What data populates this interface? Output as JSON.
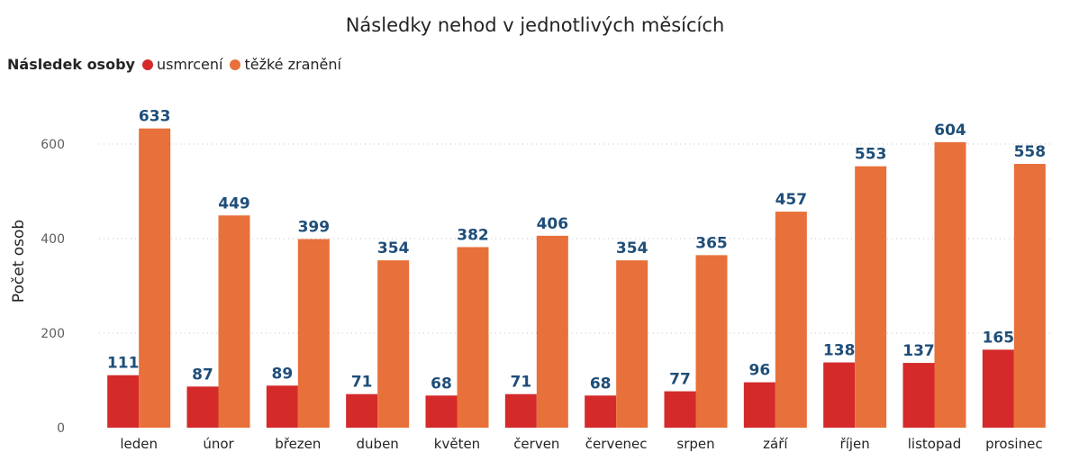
{
  "chart_data": {
    "type": "bar",
    "title": "Následky nehod v jednotlivých měsících",
    "legend_title": "Následek osoby",
    "legend_position": "top-left",
    "ylabel": "Počet osob",
    "xlabel": "",
    "ylim": [
      0,
      660
    ],
    "yticks": [
      0,
      200,
      400,
      600
    ],
    "grid": true,
    "categories": [
      "leden",
      "únor",
      "březen",
      "duben",
      "květen",
      "červen",
      "červenec",
      "srpen",
      "září",
      "říjen",
      "listopad",
      "prosinec"
    ],
    "series": [
      {
        "name": "usmrcení",
        "color": "#d42a2a",
        "values": [
          111,
          87,
          89,
          71,
          68,
          71,
          68,
          77,
          96,
          138,
          137,
          165
        ]
      },
      {
        "name": "těžké zranění",
        "color": "#e8703a",
        "values": [
          633,
          449,
          399,
          354,
          382,
          406,
          354,
          365,
          457,
          553,
          604,
          558
        ]
      }
    ]
  }
}
